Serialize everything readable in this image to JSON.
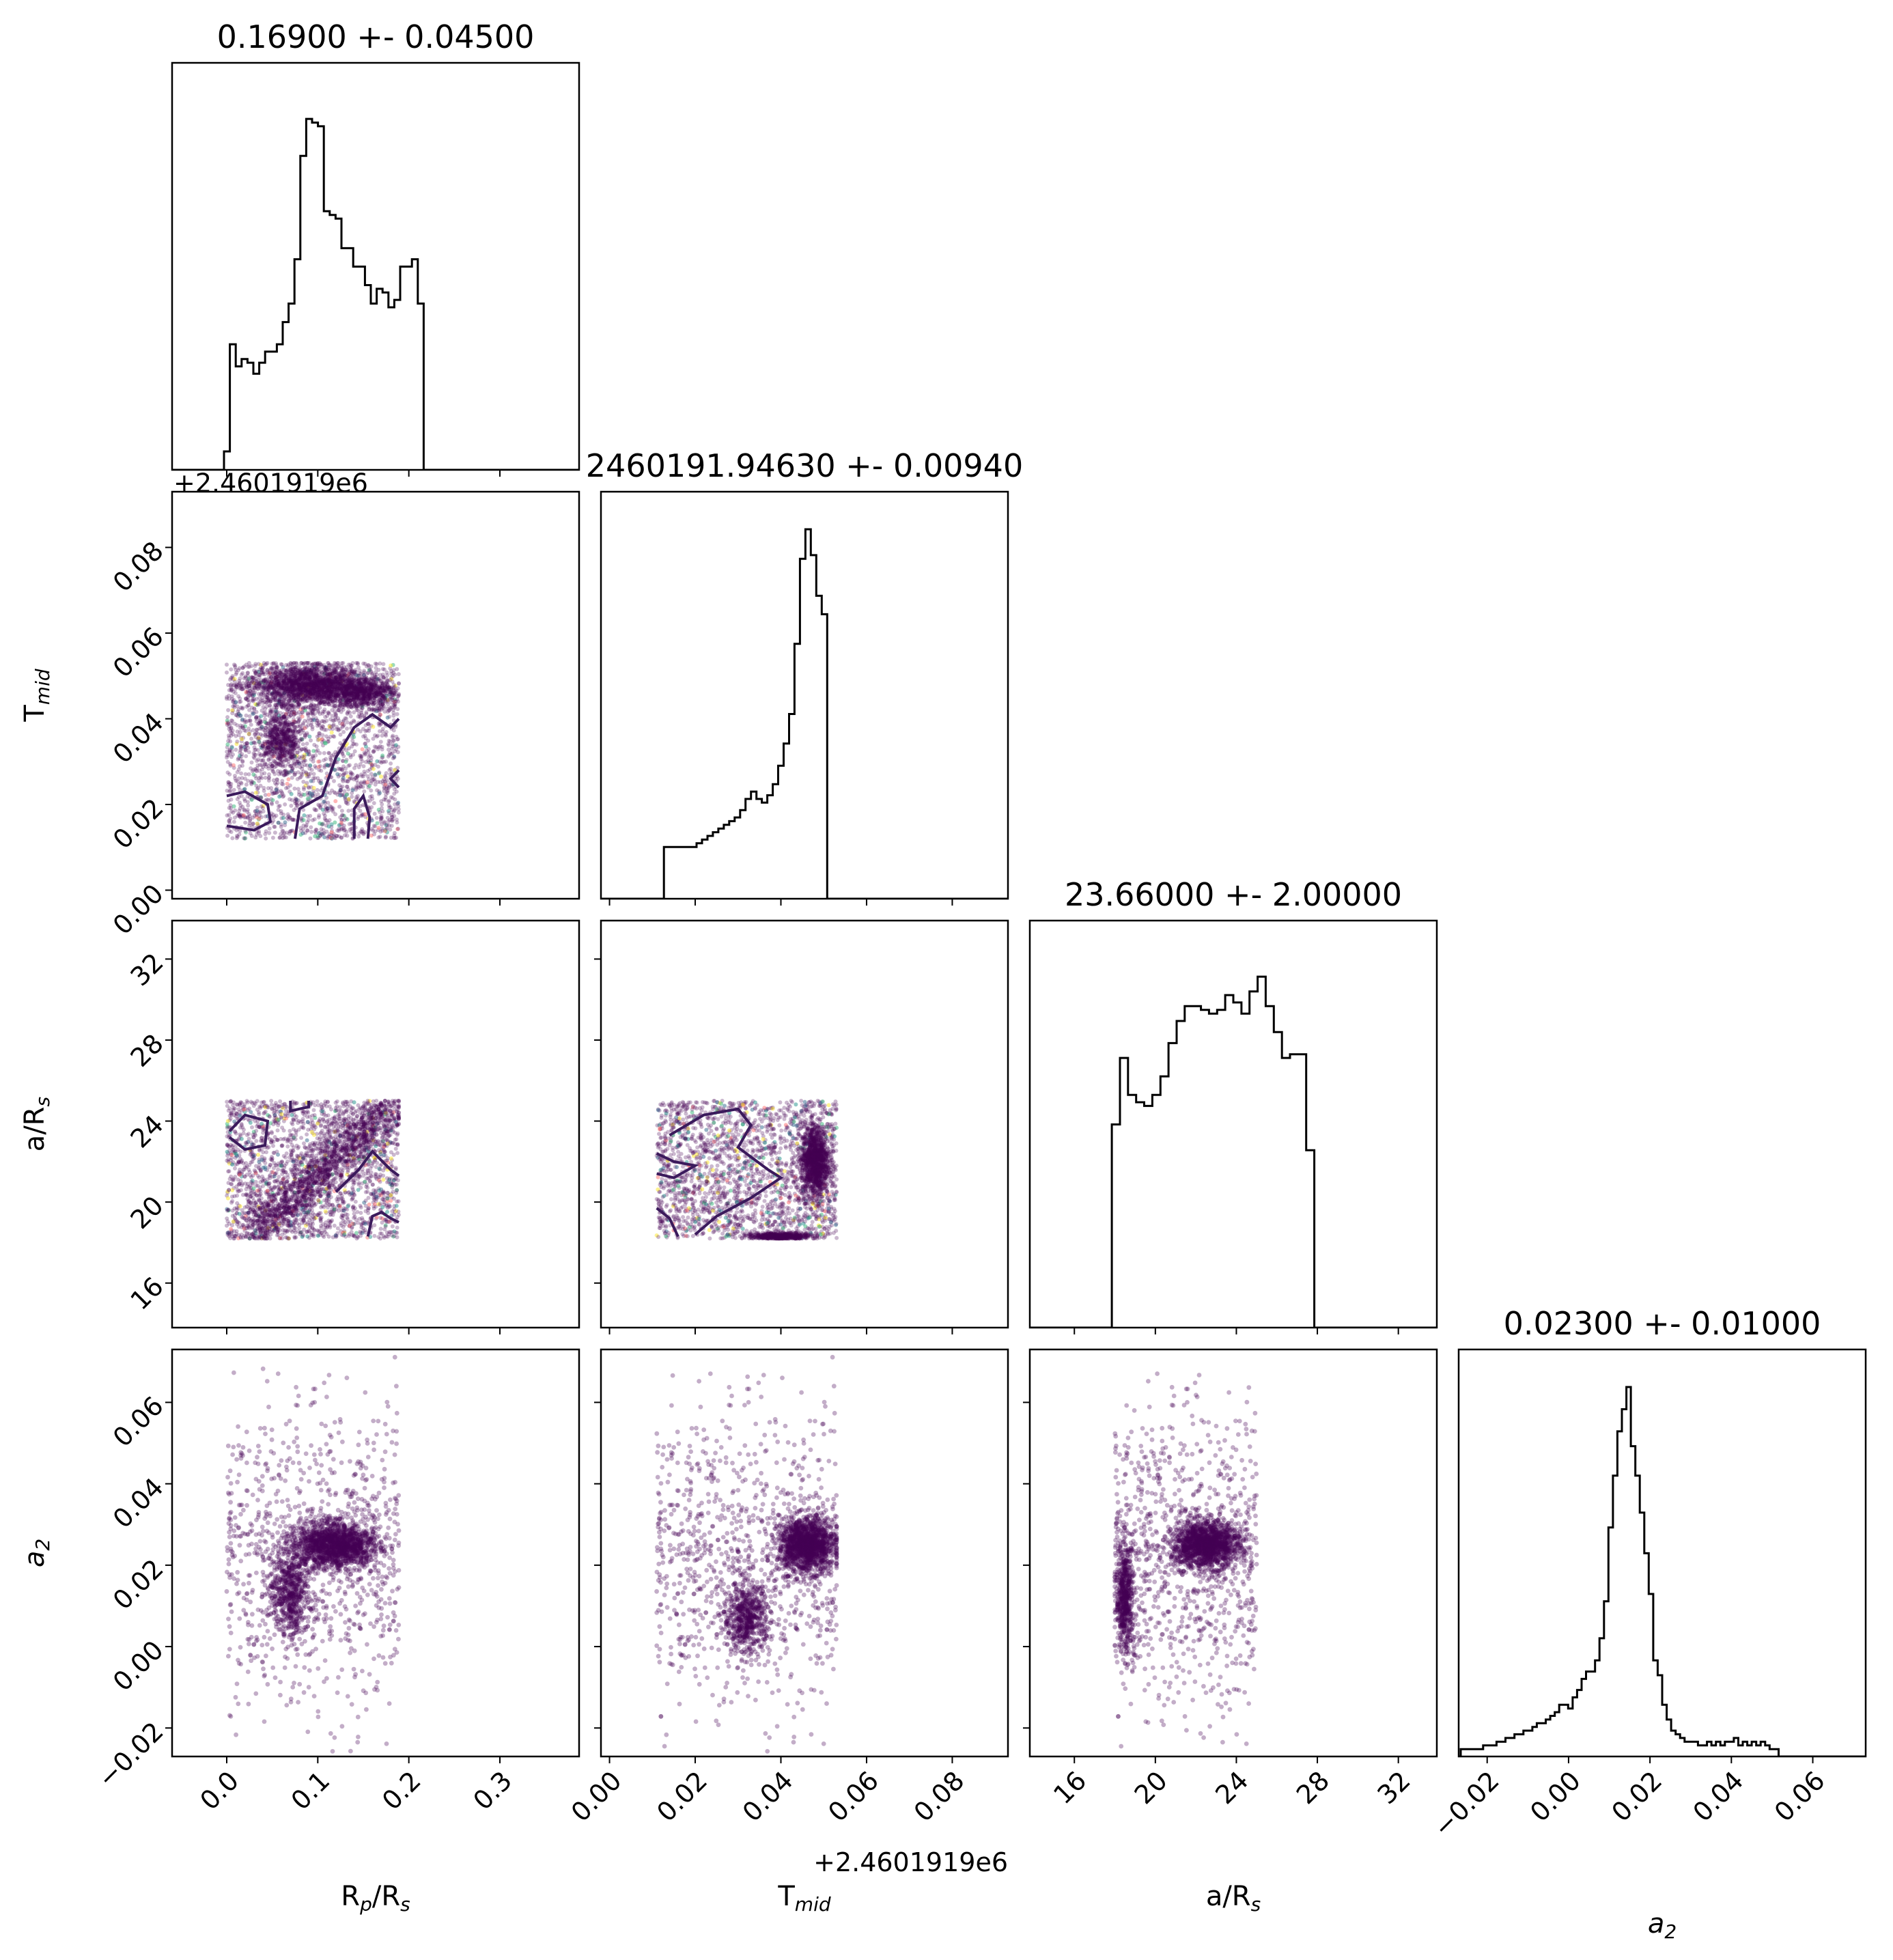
{
  "chart_data": {
    "type": "corner",
    "parameters": [
      {
        "key": "rp",
        "label_main": "R",
        "label_sub": "p",
        "label_tail": "/R",
        "label_tail_sub": "s",
        "title": "0.16900 +- 0.04500",
        "range": [
          -0.06,
          0.387
        ],
        "ticks": [
          0.0,
          0.1,
          0.2,
          0.3
        ],
        "tick_labels": [
          "0.0",
          "0.1",
          "0.2",
          "0.3"
        ]
      },
      {
        "key": "tmid",
        "label_main": "T",
        "label_sub": "mid",
        "label_tail": "",
        "label_tail_sub": "",
        "title": "2460191.94630 +- 0.00940",
        "range": [
          -0.002,
          0.093
        ],
        "ticks": [
          0.0,
          0.02,
          0.04,
          0.06,
          0.08
        ],
        "tick_labels": [
          "0.00",
          "0.02",
          "0.04",
          "0.06",
          "0.08"
        ],
        "offset_text": "+2.4601919e6"
      },
      {
        "key": "ars",
        "label_main": "a/R",
        "label_sub": "s",
        "label_tail": "",
        "label_tail_sub": "",
        "title": "23.66000 +- 2.00000",
        "range": [
          13.8,
          33.9
        ],
        "ticks": [
          16,
          20,
          24,
          28,
          32
        ],
        "tick_labels": [
          "16",
          "20",
          "24",
          "28",
          "32"
        ]
      },
      {
        "key": "a2",
        "label_main": "a",
        "label_sub": "2",
        "label_tail": "",
        "label_tail_sub": "",
        "italic": true,
        "title": "0.02300 +- 0.01000",
        "range": [
          -0.027,
          0.073
        ],
        "ticks": [
          -0.02,
          0.0,
          0.02,
          0.04,
          0.06
        ],
        "tick_labels": [
          "−0.02",
          "0.00",
          "0.02",
          "0.04",
          "0.06"
        ]
      }
    ],
    "histograms": {
      "rp": {
        "x0": -0.003,
        "bin": 0.00645,
        "counts": [
          0.05,
          0.34,
          0.28,
          0.3,
          0.29,
          0.26,
          0.29,
          0.32,
          0.32,
          0.34,
          0.4,
          0.45,
          0.57,
          0.85,
          0.95,
          0.94,
          0.93,
          0.7,
          0.69,
          0.68,
          0.6,
          0.6,
          0.55,
          0.55,
          0.5,
          0.45,
          0.49,
          0.48,
          0.44,
          0.46,
          0.55,
          0.55,
          0.57,
          0.45,
          0.0
        ]
      },
      "tmid": {
        "x0": 0.0,
        "bin": 0.00127,
        "counts": [
          0.0,
          0.0,
          0.0,
          0.0,
          0.0,
          0.0,
          0.0,
          0.0,
          0.0,
          0.0,
          0.14,
          0.14,
          0.14,
          0.14,
          0.14,
          0.14,
          0.15,
          0.16,
          0.17,
          0.18,
          0.19,
          0.2,
          0.21,
          0.22,
          0.24,
          0.27,
          0.29,
          0.27,
          0.26,
          0.28,
          0.31,
          0.36,
          0.42,
          0.5,
          0.69,
          0.92,
          1.0,
          0.93,
          0.82,
          0.77,
          0.0
        ]
      },
      "ars": {
        "x0": 17.45,
        "bin": 0.4,
        "counts": [
          0.0,
          0.55,
          0.73,
          0.63,
          0.61,
          0.6,
          0.63,
          0.68,
          0.77,
          0.83,
          0.87,
          0.87,
          0.86,
          0.85,
          0.86,
          0.9,
          0.88,
          0.85,
          0.91,
          0.95,
          0.87,
          0.8,
          0.73,
          0.74,
          0.74,
          0.48,
          0.0
        ]
      },
      "a2": {
        "x0": -0.0265,
        "bin": 0.0011,
        "counts": [
          0.02,
          0.02,
          0.02,
          0.02,
          0.02,
          0.03,
          0.03,
          0.03,
          0.04,
          0.04,
          0.05,
          0.05,
          0.06,
          0.06,
          0.07,
          0.07,
          0.08,
          0.09,
          0.09,
          0.1,
          0.11,
          0.12,
          0.14,
          0.14,
          0.13,
          0.16,
          0.18,
          0.21,
          0.23,
          0.23,
          0.26,
          0.32,
          0.42,
          0.62,
          0.76,
          0.88,
          0.94,
          1.0,
          0.84,
          0.76,
          0.66,
          0.55,
          0.44,
          0.26,
          0.22,
          0.14,
          0.1,
          0.07,
          0.06,
          0.05,
          0.04,
          0.04,
          0.04,
          0.03,
          0.03,
          0.04,
          0.03,
          0.04,
          0.03,
          0.04,
          0.04,
          0.05,
          0.03,
          0.04,
          0.03,
          0.04,
          0.03,
          0.04,
          0.03,
          0.02,
          0.02
        ]
      }
    },
    "scatter_clusters": {
      "tmid_vs_rp": {
        "x_range": [
          0.0,
          0.189
        ],
        "y_range": [
          0.012,
          0.053
        ],
        "dense": [
          [
            0.09,
            0.048,
            0.06,
            0.004
          ],
          [
            0.1,
            0.047,
            0.05,
            0.005
          ],
          [
            0.06,
            0.035,
            0.02,
            0.006
          ],
          [
            0.15,
            0.046,
            0.03,
            0.003
          ]
        ]
      },
      "ars_vs_rp": {
        "x_range": [
          0.0,
          0.189
        ],
        "y_range": [
          18.2,
          25.0
        ],
        "diag": {
          "x": [
            0.03,
            0.18
          ],
          "y": [
            18.4,
            24.8
          ],
          "width": 0.03
        }
      },
      "ars_vs_tmid": {
        "x_range": [
          0.011,
          0.053
        ],
        "y_range": [
          18.2,
          25.0
        ],
        "dense": [
          [
            0.048,
            22.0,
            0.003,
            1.6
          ],
          [
            0.04,
            18.3,
            0.006,
            0.15
          ]
        ]
      },
      "a2_vs_rp": {
        "x_range": [
          0.0,
          0.189
        ],
        "y_range": [
          -0.026,
          0.072
        ],
        "dense": [
          [
            0.12,
            0.025,
            0.04,
            0.005
          ],
          [
            0.07,
            0.014,
            0.02,
            0.01
          ]
        ]
      },
      "a2_vs_tmid": {
        "x_range": [
          0.011,
          0.053
        ],
        "y_range": [
          -0.026,
          0.072
        ],
        "dense": [
          [
            0.046,
            0.025,
            0.006,
            0.006
          ],
          [
            0.032,
            0.007,
            0.005,
            0.008
          ]
        ]
      },
      "a2_vs_ars": {
        "x_range": [
          18.0,
          25.0
        ],
        "y_range": [
          -0.026,
          0.072
        ],
        "dense": [
          [
            22.5,
            0.025,
            1.5,
            0.005
          ],
          [
            18.5,
            0.012,
            0.4,
            0.012
          ]
        ]
      }
    },
    "colors": {
      "line": "#000000",
      "points": "#440154",
      "contour": "#3b1a5c",
      "speckle": [
        "#fde725",
        "#35b779",
        "#31688e",
        "#ff6e6e",
        "#21918c"
      ]
    }
  }
}
